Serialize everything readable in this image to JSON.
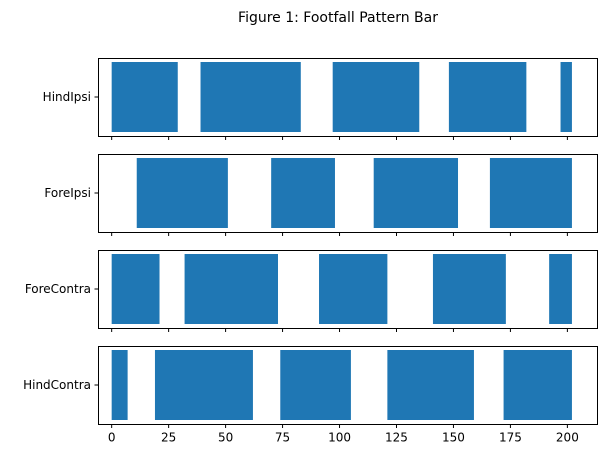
{
  "chart_data": {
    "type": "bar",
    "title": "Figure 1: Footfall Pattern Bar",
    "xlabel": "",
    "ylabel": "",
    "xlim": [
      -6,
      213
    ],
    "xticks": [
      0,
      25,
      50,
      75,
      100,
      125,
      150,
      175,
      200
    ],
    "grid": false,
    "bar_color": "#1f77b4",
    "rows": [
      {
        "label": "HindIpsi",
        "intervals": [
          [
            0,
            29
          ],
          [
            39,
            83
          ],
          [
            97,
            135
          ],
          [
            148,
            182
          ],
          [
            197,
            202
          ]
        ]
      },
      {
        "label": "ForeIpsi",
        "intervals": [
          [
            11,
            51
          ],
          [
            70,
            98
          ],
          [
            115,
            152
          ],
          [
            166,
            202
          ]
        ]
      },
      {
        "label": "ForeContra",
        "intervals": [
          [
            0,
            21
          ],
          [
            32,
            73
          ],
          [
            91,
            121
          ],
          [
            141,
            173
          ],
          [
            192,
            202
          ]
        ]
      },
      {
        "label": "HindContra",
        "intervals": [
          [
            0,
            7
          ],
          [
            19,
            62
          ],
          [
            74,
            105
          ],
          [
            121,
            159
          ],
          [
            172,
            202
          ]
        ]
      }
    ]
  }
}
